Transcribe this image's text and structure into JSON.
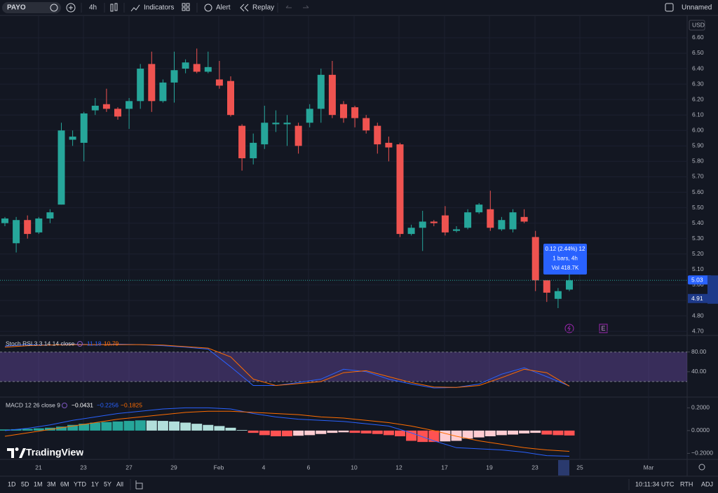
{
  "toolbar": {
    "symbol": "PAYO",
    "interval": "4h",
    "indicators": "Indicators",
    "alert": "Alert",
    "replay": "Replay",
    "layout_name": "Unnamed"
  },
  "chart": {
    "currency": "USD",
    "ylim": [
      4.68,
      6.74
    ],
    "yticks": [
      {
        "value": 6.6,
        "label": "6.60"
      },
      {
        "value": 6.5,
        "label": "6.50"
      },
      {
        "value": 6.4,
        "label": "6.40"
      },
      {
        "value": 6.3,
        "label": "6.30"
      },
      {
        "value": 6.2,
        "label": "6.20"
      },
      {
        "value": 6.1,
        "label": "6.10"
      },
      {
        "value": 6.0,
        "label": "6.00"
      },
      {
        "value": 5.9,
        "label": "5.90"
      },
      {
        "value": 5.8,
        "label": "5.80"
      },
      {
        "value": 5.7,
        "label": "5.70"
      },
      {
        "value": 5.6,
        "label": "5.60"
      },
      {
        "value": 5.5,
        "label": "5.50"
      },
      {
        "value": 5.4,
        "label": "5.40"
      },
      {
        "value": 5.3,
        "label": "5.30"
      },
      {
        "value": 5.2,
        "label": "5.20"
      },
      {
        "value": 5.1,
        "label": "5.10"
      },
      {
        "value": 5.0,
        "label": "5.00"
      },
      {
        "value": 4.9,
        "label": "4.90"
      },
      {
        "value": 4.8,
        "label": "4.80"
      },
      {
        "value": 4.7,
        "label": "4.70"
      }
    ],
    "up_color": "#26a69a",
    "down_color": "#ef5350",
    "candles": {
      "open": [
        5.4,
        5.27,
        5.42,
        5.34,
        5.43,
        5.52,
        5.94,
        5.92,
        6.13,
        6.17,
        6.14,
        6.14,
        6.19,
        6.43,
        6.19,
        6.31,
        6.4,
        6.43,
        6.38,
        6.33,
        6.32,
        6.03,
        5.82,
        5.91,
        6.04,
        6.04,
        6.03,
        6.05,
        6.14,
        6.36,
        6.17,
        6.15,
        6.08,
        6.03,
        5.92,
        5.91,
        5.33,
        5.37,
        5.41,
        5.45,
        5.35,
        5.37,
        5.47,
        5.49,
        5.36,
        5.36,
        5.44,
        5.31,
        5.03,
        4.91,
        4.97
      ],
      "high": [
        5.44,
        5.44,
        5.45,
        5.44,
        5.49,
        6.05,
        6.0,
        6.12,
        6.21,
        6.27,
        6.15,
        6.21,
        6.43,
        6.51,
        6.33,
        6.51,
        6.46,
        6.53,
        6.51,
        6.45,
        6.35,
        6.04,
        5.98,
        6.16,
        6.13,
        6.1,
        6.05,
        6.17,
        6.4,
        6.45,
        6.19,
        6.16,
        6.1,
        6.05,
        5.96,
        5.92,
        5.39,
        5.48,
        5.42,
        5.51,
        5.38,
        5.49,
        5.53,
        5.61,
        5.44,
        5.49,
        5.49,
        5.35,
        5.03,
        4.98,
        5.09
      ],
      "low": [
        5.38,
        5.21,
        5.3,
        5.33,
        5.4,
        5.52,
        5.9,
        5.8,
        6.1,
        6.12,
        6.07,
        6.01,
        6.14,
        6.12,
        6.18,
        6.18,
        6.37,
        6.37,
        6.37,
        6.27,
        6.09,
        5.74,
        5.78,
        5.88,
        5.99,
        5.9,
        5.85,
        6.02,
        6.05,
        6.08,
        6.05,
        6.02,
        5.98,
        5.85,
        5.8,
        5.31,
        5.32,
        5.22,
        5.38,
        5.32,
        5.34,
        5.36,
        5.46,
        5.35,
        5.35,
        5.34,
        5.4,
        4.96,
        4.89,
        4.85,
        4.96
      ],
      "close": [
        5.43,
        5.42,
        5.33,
        5.43,
        5.47,
        6.0,
        5.96,
        6.11,
        6.16,
        6.14,
        6.09,
        6.19,
        6.4,
        6.19,
        6.31,
        6.39,
        6.44,
        6.38,
        6.41,
        6.29,
        6.1,
        5.82,
        5.92,
        6.05,
        6.05,
        6.05,
        5.9,
        6.14,
        6.36,
        6.1,
        6.08,
        6.08,
        6.0,
        5.91,
        5.89,
        5.33,
        5.37,
        5.41,
        5.4,
        5.34,
        5.36,
        5.47,
        5.52,
        5.37,
        5.42,
        5.47,
        5.41,
        5.03,
        4.95,
        4.96,
        5.03
      ]
    },
    "last_price": 5.03,
    "price_marker": 4.91,
    "tooltip": [
      "0.12 (2.44%) 12",
      "1 bars, 4h",
      "Vol 418.7K"
    ],
    "event_label": "E"
  },
  "stoch_rsi": {
    "label": "Stoch RSI 3 3 14 14 close",
    "k_last": 11.18,
    "d_last": 10.79,
    "ylim": [
      -10,
      108
    ],
    "yticks": [
      {
        "value": 80,
        "label": "80.00"
      },
      {
        "value": 40,
        "label": "40.00"
      }
    ],
    "band": [
      20,
      80
    ],
    "k_color": "#2962ff",
    "d_color": "#ff6d00",
    "k_values": [
      92,
      95,
      94,
      96,
      95,
      96,
      95,
      93,
      90,
      86,
      50,
      12,
      12,
      18,
      25,
      45,
      40,
      25,
      15,
      7,
      8,
      15,
      35,
      48,
      30,
      11.18
    ],
    "d_values": [
      90,
      93,
      94,
      95,
      95,
      95,
      95,
      94,
      91,
      88,
      70,
      25,
      12,
      16,
      20,
      38,
      42,
      30,
      18,
      9,
      8,
      12,
      28,
      45,
      38,
      10.79
    ]
  },
  "macd": {
    "label": "MACD 12 26 close 9",
    "hist_last": {
      "value": -0.0431,
      "label": "−0.0431"
    },
    "macd_last": {
      "value": -0.2256,
      "label": "−0.2256"
    },
    "signal_last": {
      "value": -0.1825,
      "label": "−0.1825"
    },
    "ylim": [
      -0.25,
      0.27
    ],
    "yticks": [
      {
        "value": 0.2,
        "label": "0.2000"
      },
      {
        "value": 0,
        "label": "0.0000"
      },
      {
        "value": -0.2,
        "label": "−0.2000"
      }
    ],
    "hist_colors": {
      "pos_up": "#26a69a",
      "pos_down": "#b2dfdb",
      "neg_down": "#ff5252",
      "neg_up": "#ffcdd2"
    },
    "histogram": [
      0.01,
      0.012,
      0.015,
      0.02,
      0.025,
      0.035,
      0.05,
      0.06,
      0.07,
      0.075,
      0.08,
      0.085,
      0.09,
      0.088,
      0.085,
      0.08,
      0.07,
      0.06,
      0.05,
      0.04,
      0.025,
      0.005,
      -0.02,
      -0.04,
      -0.05,
      -0.05,
      -0.045,
      -0.04,
      -0.03,
      -0.02,
      -0.015,
      -0.02,
      -0.025,
      -0.03,
      -0.04,
      -0.05,
      -0.09,
      -0.1,
      -0.1,
      -0.095,
      -0.09,
      -0.07,
      -0.06,
      -0.05,
      -0.04,
      -0.035,
      -0.025,
      -0.02,
      -0.035,
      -0.04,
      -0.0431
    ],
    "macd_color": "#2962ff",
    "signal_color": "#ff6d00",
    "macd_values": [
      0.0,
      0.02,
      0.05,
      0.09,
      0.12,
      0.15,
      0.17,
      0.19,
      0.2,
      0.2,
      0.19,
      0.15,
      0.12,
      0.1,
      0.09,
      0.08,
      0.06,
      0.04,
      -0.02,
      -0.09,
      -0.15,
      -0.16,
      -0.17,
      -0.19,
      -0.22,
      -0.2256
    ],
    "signal_values": [
      -0.05,
      -0.02,
      0.01,
      0.04,
      0.07,
      0.1,
      0.12,
      0.14,
      0.16,
      0.17,
      0.17,
      0.16,
      0.15,
      0.14,
      0.12,
      0.11,
      0.09,
      0.07,
      0.04,
      0.0,
      -0.05,
      -0.09,
      -0.12,
      -0.15,
      -0.17,
      -0.1825
    ]
  },
  "x_labels": [
    "21",
    "23",
    "27",
    "29",
    "Feb",
    "4",
    "6",
    "10",
    "12",
    "17",
    "19",
    "23",
    "25",
    "Mar"
  ],
  "logo": "TradingView",
  "bottom_bar": {
    "ranges": [
      "1D",
      "5D",
      "1M",
      "3M",
      "6M",
      "YTD",
      "1Y",
      "5Y",
      "All"
    ],
    "clock": "10:11:34 UTC",
    "session": "RTH",
    "adjust": "ADJ"
  }
}
